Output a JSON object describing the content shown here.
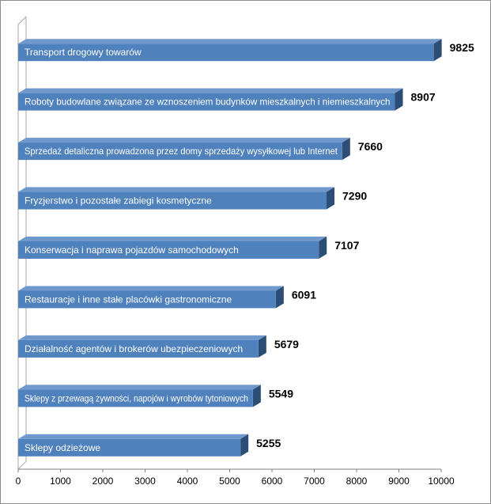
{
  "chart_data": {
    "type": "bar",
    "orientation": "horizontal",
    "categories": [
      "Transport drogowy towarów",
      "Roboty budowlane związane ze wznoszeniem budynków mieszkalnych i niemieszkalnych",
      "Sprzedaż detaliczna prowadzona przez domy sprzedaży wysyłkowej lub Internet",
      "Fryzjerstwo i pozostałe zabiegi kosmetyczne",
      "Konserwacja i naprawa pojazdów samochodowych",
      "Restauracje i inne stałe placówki gastronomiczne",
      "Działalność agentów i brokerów ubezpieczeniowych",
      "Sklepy z przewagą żywności, napojów i wyrobów tytoniowych",
      "Sklepy odzieżowe"
    ],
    "values": [
      9825,
      8907,
      7660,
      7290,
      7107,
      6091,
      5679,
      5549,
      5255
    ],
    "value_labels": [
      "9825",
      "8907",
      "7660",
      "7290",
      "7107",
      "6091",
      "5679",
      "5549",
      "5255"
    ],
    "xlim": [
      0,
      10000
    ],
    "x_ticks": [
      0,
      1000,
      2000,
      3000,
      4000,
      5000,
      6000,
      7000,
      8000,
      9000,
      10000
    ],
    "x_tick_labels": [
      "0",
      "1000",
      "2000",
      "3000",
      "4000",
      "5000",
      "6000",
      "7000",
      "8000",
      "9000",
      "10000"
    ],
    "title": "",
    "xlabel": "",
    "ylabel": "",
    "grid": false,
    "legend": "none",
    "style": "3d",
    "colors": {
      "bar_front": "#4f81bd",
      "bar_top": "#6f98cc",
      "bar_side": "#2c4d75",
      "bar_label": "#ffffff",
      "value_label": "#000000",
      "wall": "#a6a6a6",
      "axis": "#808080"
    }
  }
}
